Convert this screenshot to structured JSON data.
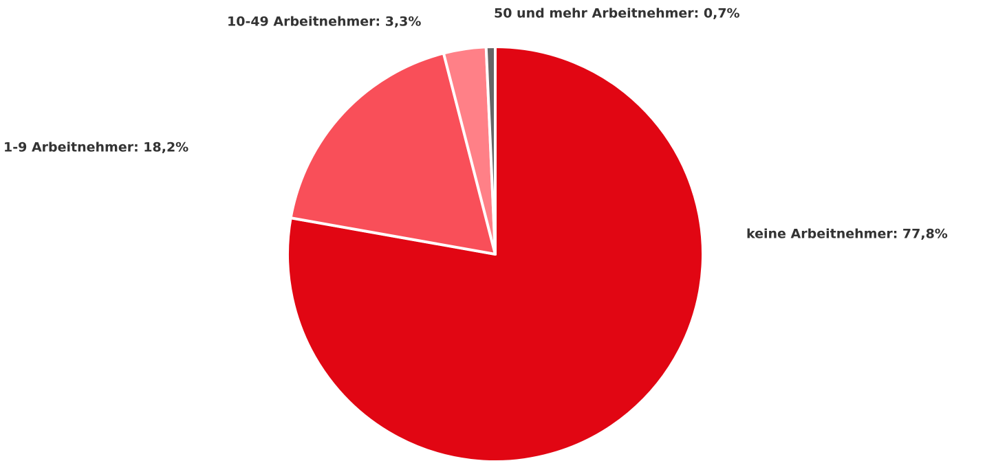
{
  "chart_data": {
    "type": "pie",
    "values": [
      77.8,
      18.2,
      3.3,
      0.7
    ],
    "value_labels": [
      "keine Arbeitnehmer: 77,8%",
      "1-9 Arbeitnehmer: 18,2%",
      "10-49 Arbeitnehmer: 3,3%",
      "50 und mehr Arbeitnehmer: 0,7%"
    ],
    "colors": [
      "#e10613",
      "#f94f59",
      "#ff8087",
      "#666666"
    ]
  }
}
